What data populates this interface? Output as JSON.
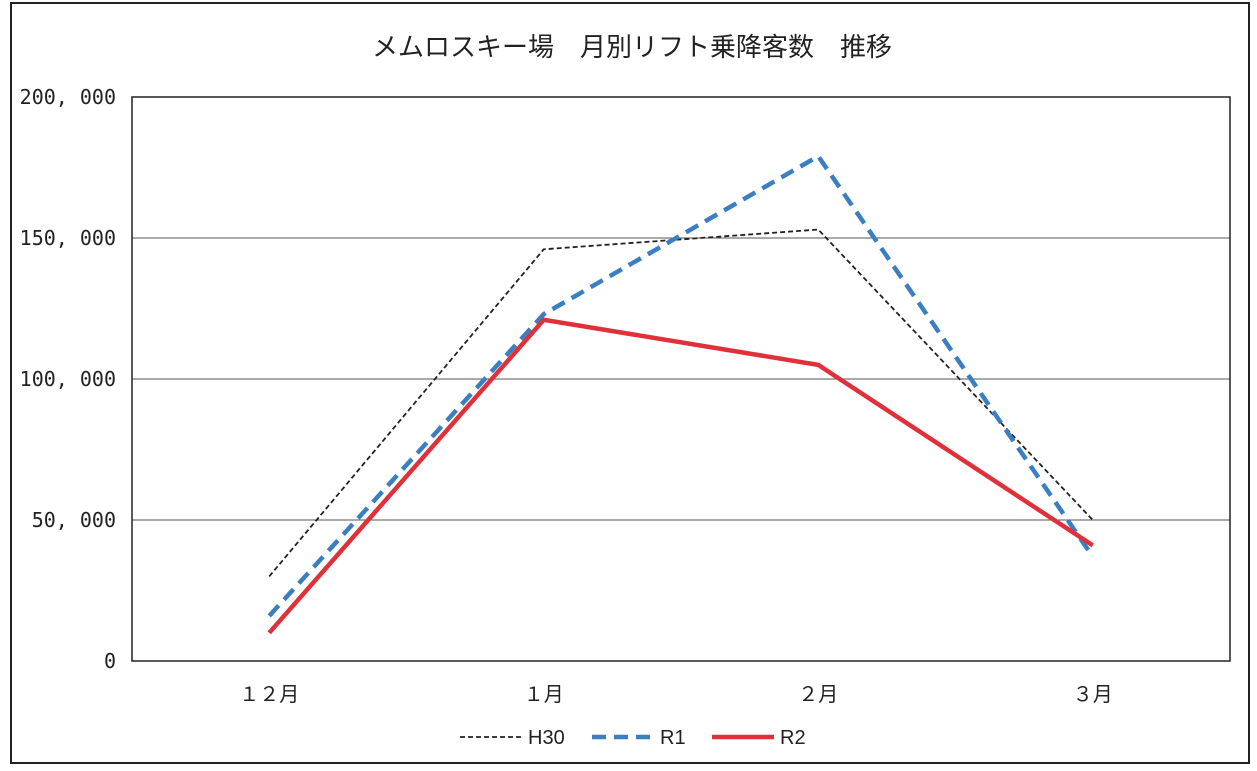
{
  "chart_data": {
    "type": "line",
    "title": "メムロスキー場　月別リフト乗降客数　推移",
    "xlabel": "",
    "ylabel": "",
    "categories": [
      "１２月",
      "１月",
      "２月",
      "３月"
    ],
    "ylim": [
      0,
      200000
    ],
    "yticks": [
      0,
      50000,
      100000,
      150000,
      200000
    ],
    "ytick_labels": [
      "0",
      "50, 000",
      "100, 000",
      "150, 000",
      "200, 000"
    ],
    "grid": true,
    "legend_position": "bottom",
    "series": [
      {
        "name": "H30",
        "values": [
          30000,
          146000,
          153000,
          50000
        ],
        "color": "#222222",
        "style": "dotted"
      },
      {
        "name": "R1",
        "values": [
          16000,
          123000,
          179000,
          37000
        ],
        "color": "#3a7fc1",
        "style": "dashed"
      },
      {
        "name": "R2",
        "values": [
          10000,
          121000,
          105000,
          41000
        ],
        "color": "#e0303a",
        "style": "solid"
      }
    ]
  }
}
